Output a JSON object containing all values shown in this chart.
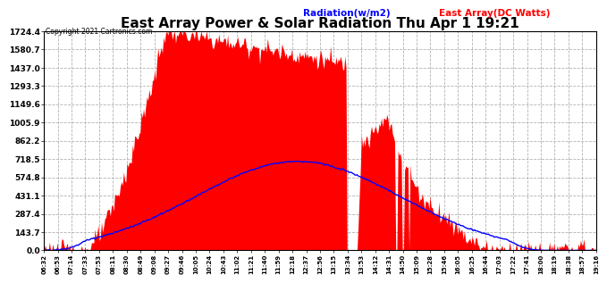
{
  "title": "East Array Power & Solar Radiation Thu Apr 1 19:21",
  "copyright": "Copyright 2021 Cartronics.com",
  "legend_radiation": "Radiation(w/m2)",
  "legend_east_array": "East Array(DC Watts)",
  "legend_radiation_color": "blue",
  "legend_east_array_color": "red",
  "title_fontsize": 11,
  "y_max": 1724.4,
  "y_min": 0.0,
  "y_ticks": [
    0.0,
    143.7,
    287.4,
    431.1,
    574.8,
    718.5,
    862.2,
    1005.9,
    1149.6,
    1293.3,
    1437.0,
    1580.7,
    1724.4
  ],
  "background_color": "#ffffff",
  "plot_bg_color": "#ffffff",
  "grid_color": "#aaaaaa",
  "fill_color": "red",
  "line_color": "blue",
  "x_labels": [
    "06:32",
    "06:53",
    "07:14",
    "07:33",
    "07:53",
    "08:11",
    "08:30",
    "08:49",
    "09:08",
    "09:27",
    "09:46",
    "10:05",
    "10:24",
    "10:43",
    "11:02",
    "11:21",
    "11:40",
    "11:59",
    "12:18",
    "12:37",
    "12:56",
    "13:15",
    "13:34",
    "13:53",
    "14:12",
    "14:31",
    "14:50",
    "15:09",
    "15:28",
    "15:46",
    "16:05",
    "16:25",
    "16:44",
    "17:03",
    "17:22",
    "17:41",
    "18:00",
    "18:19",
    "18:38",
    "18:57",
    "19:16"
  ]
}
